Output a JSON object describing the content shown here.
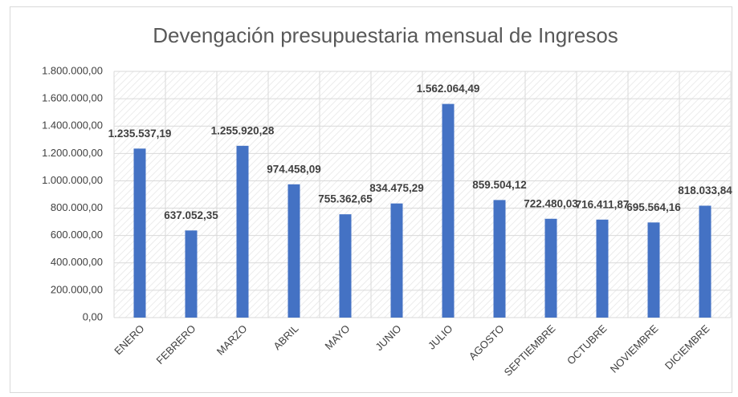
{
  "chart_data": {
    "type": "bar",
    "title": "Devengación presupuestaria mensual de Ingresos",
    "categories": [
      "ENERO",
      "FEBRERO",
      "MARZO",
      "ABRIL",
      "MAYO",
      "JUNIO",
      "JULIO",
      "AGOSTO",
      "SEPTIEMBRE",
      "OCTUBRE",
      "NOVIEMBRE",
      "DICIEMBRE"
    ],
    "values": [
      1235537.19,
      637052.35,
      1255920.28,
      974458.09,
      755362.65,
      834475.29,
      1562064.49,
      859504.12,
      722480.03,
      716411.87,
      695564.16,
      818033.84
    ],
    "value_labels": [
      "1.235.537,19",
      "637.052,35",
      "1.255.920,28",
      "974.458,09",
      "755.362,65",
      "834.475,29",
      "1.562.064,49",
      "859.504,12",
      "722.480,03",
      "716.411,87",
      "695.564,16",
      "818.033,84"
    ],
    "color": "#4472c4",
    "ylim": [
      0,
      1800000
    ],
    "yticks": [
      {
        "value": 0,
        "label": "0,00"
      },
      {
        "value": 200000,
        "label": "200.000,00"
      },
      {
        "value": 400000,
        "label": "400.000,00"
      },
      {
        "value": 600000,
        "label": "600.000,00"
      },
      {
        "value": 800000,
        "label": "800.000,00"
      },
      {
        "value": 1000000,
        "label": "1.000.000,00"
      },
      {
        "value": 1200000,
        "label": "1.200.000,00"
      },
      {
        "value": 1400000,
        "label": "1.400.000,00"
      },
      {
        "value": 1600000,
        "label": "1.600.000,00"
      },
      {
        "value": 1800000,
        "label": "1.800.000,00"
      }
    ],
    "grid": true
  }
}
